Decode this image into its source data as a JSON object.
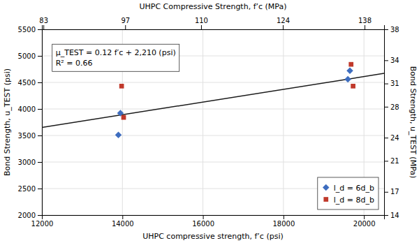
{
  "chart_data": {
    "type": "scatter",
    "x_label": "UHPC compressive strength, f’c (psi)",
    "y_label": "Bond Strength, u_TEST (psi)",
    "x2_label": "UHPC Compressive Strength, f’c (MPa)",
    "y2_label": "Bond Strength, u_TEST (MPa)",
    "xlim": [
      12000,
      20500
    ],
    "xticks": [
      12000,
      14000,
      16000,
      18000,
      20000
    ],
    "ylim": [
      2000,
      5500
    ],
    "yticks": [
      2000,
      2500,
      3000,
      3500,
      4000,
      4500,
      5000,
      5500
    ],
    "x2lim": [
      12000,
      20500
    ],
    "x2ticks": [
      {
        "value": 12038.154,
        "label": "83"
      },
      {
        "value": 14068.686,
        "label": "97"
      },
      {
        "value": 15954.18,
        "label": "110"
      },
      {
        "value": 17984.712,
        "label": "124"
      },
      {
        "value": 20015.244,
        "label": "138"
      }
    ],
    "y2lim": [
      14,
      38
    ],
    "y2ticks": [
      14,
      17,
      21,
      24,
      28,
      31,
      34,
      38
    ],
    "grid": true,
    "legend": "lower right",
    "annotations": [
      "μ_TEST = 0.12 f′c + 2,210 (psi)",
      "R² = 0.66"
    ],
    "series": [
      {
        "type": "line",
        "color": "#1a1a1a",
        "x": [
          12000,
          20500
        ],
        "values": [
          3650,
          4670
        ]
      },
      {
        "name": "l_d = 6d_b",
        "type": "scatter",
        "marker": "diamond",
        "color": "#3e6dbf",
        "x": [
          13900,
          13950,
          19600,
          19650
        ],
        "values": [
          3510,
          3920,
          4560,
          4720
        ]
      },
      {
        "name": "l_d = 8d_b",
        "type": "scatter",
        "marker": "square",
        "color": "#c0392b",
        "x": [
          13980,
          14030,
          19680,
          19730
        ],
        "values": [
          4430,
          3840,
          4840,
          4430
        ]
      }
    ]
  }
}
